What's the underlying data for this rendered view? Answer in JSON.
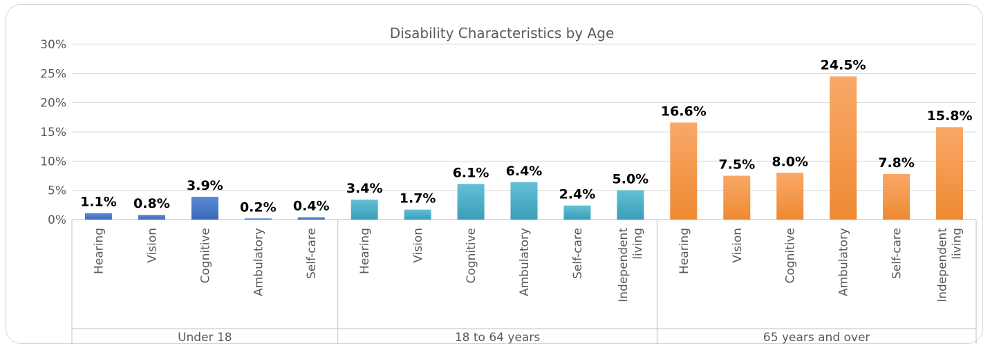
{
  "chart_data": {
    "type": "bar",
    "title": "Disability Characteristics by Age",
    "ylim": [
      0,
      30
    ],
    "yticks": [
      "0%",
      "5%",
      "10%",
      "15%",
      "20%",
      "25%",
      "30%"
    ],
    "grid": true,
    "groups": [
      {
        "name": "Under 18",
        "color": "#4472c4",
        "categories": [
          "Hearing",
          "Vision",
          "Cognitive",
          "Ambulatory",
          "Self-care"
        ],
        "values": [
          1.1,
          0.8,
          3.9,
          0.2,
          0.4
        ],
        "labels": [
          "1.1%",
          "0.8%",
          "3.9%",
          "0.2%",
          "0.4%"
        ]
      },
      {
        "name": "18 to 64 years",
        "color": "#4bacc6",
        "categories": [
          "Hearing",
          "Vision",
          "Cognitive",
          "Ambulatory",
          "Self-care",
          "Independent living"
        ],
        "values": [
          3.4,
          1.7,
          6.1,
          6.4,
          2.4,
          5.0
        ],
        "labels": [
          "3.4%",
          "1.7%",
          "6.1%",
          "6.4%",
          "2.4%",
          "5.0%"
        ]
      },
      {
        "name": "65 years and over",
        "color": "#f79646",
        "categories": [
          "Hearing",
          "Vision",
          "Cognitive",
          "Ambulatory",
          "Self-care",
          "Independent living"
        ],
        "values": [
          16.6,
          7.5,
          8.0,
          24.5,
          7.8,
          15.8
        ],
        "labels": [
          "16.6%",
          "7.5%",
          "8.0%",
          "24.5%",
          "7.8%",
          "15.8%"
        ]
      }
    ]
  }
}
